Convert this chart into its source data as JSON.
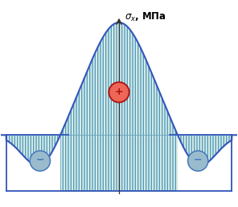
{
  "curve_color": "#3355bb",
  "fill_color": "#d8eee8",
  "hatch_color": "#5599bb",
  "axis_color": "#333333",
  "pos_sign_color": "#cc2222",
  "neg_sign_color": "#4477bb",
  "pos_circle_fill": "#ee6655",
  "neg_circle_fill": "#99bbcc",
  "background": "#ffffff",
  "label_color": "#000000",
  "label_text": "σx, МПа"
}
